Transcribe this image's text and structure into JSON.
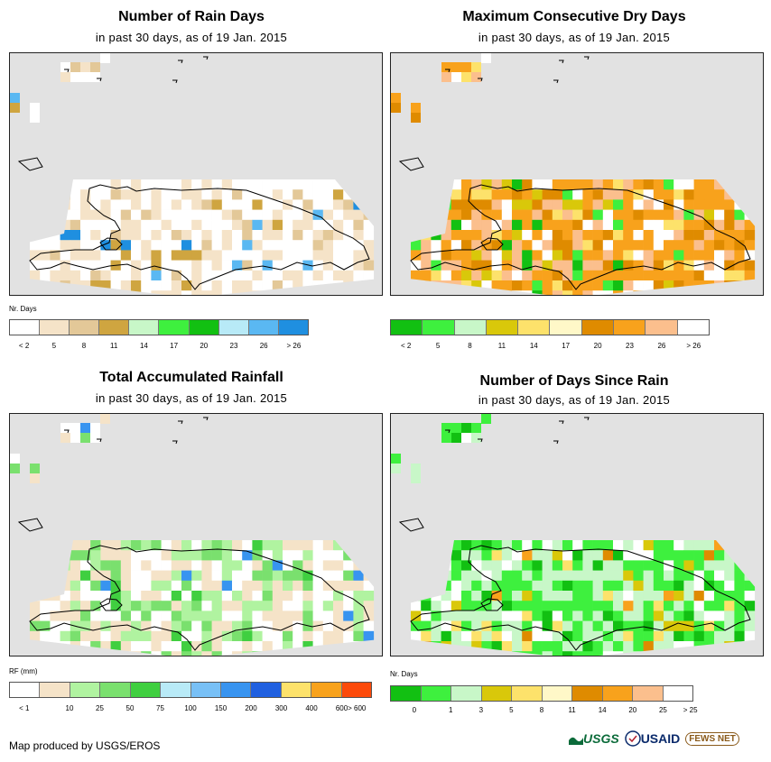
{
  "panels": [
    {
      "id": "rain-days",
      "title": "Number of Rain Days",
      "subtitle": "in past 30 days, as of 19 Jan. 2015",
      "legend_title": "Nr. Days",
      "legend_colors": [
        "#ffffff",
        "#f5e3c8",
        "#e3c898",
        "#cfa540",
        "#c8f7c8",
        "#3ef03e",
        "#12c012",
        "#b8eaf7",
        "#5ab8f2",
        "#1f8fe0"
      ],
      "legend_labels": [
        "< 2",
        "5",
        "8",
        "11",
        "14",
        "17",
        "20",
        "23",
        "26",
        "> 26"
      ],
      "label_align": "cell",
      "grid_colors": [
        "#ffffff",
        "#f5e3c8",
        "#e3c898",
        "#cfa540",
        "#5ab8f2",
        "#1f8fe0"
      ],
      "grid_weights": [
        55,
        28,
        6,
        4,
        1,
        1
      ]
    },
    {
      "id": "max-dry-days",
      "title": "Maximum Consecutive Dry Days",
      "subtitle": "in past 30 days, as of 19 Jan. 2015",
      "legend_title": "",
      "legend_colors": [
        "#12c012",
        "#3ef03e",
        "#c8f7c8",
        "#d9c80a",
        "#fde26b",
        "#fff8c8",
        "#df8b00",
        "#f8a21c",
        "#fbbf8d",
        "#ffffff"
      ],
      "legend_labels": [
        "< 2",
        "5",
        "8",
        "11",
        "14",
        "17",
        "20",
        "23",
        "26",
        "> 26"
      ],
      "label_align": "cell",
      "grid_colors": [
        "#f8a21c",
        "#df8b00",
        "#fbbf8d",
        "#ffffff",
        "#3ef03e",
        "#12c012",
        "#d9c80a",
        "#fde26b"
      ],
      "grid_weights": [
        34,
        14,
        16,
        16,
        5,
        4,
        5,
        6
      ]
    },
    {
      "id": "total-rainfall",
      "title": "Total Accumulated Rainfall",
      "subtitle": "in past 30 days, as of 19 Jan. 2015",
      "legend_title": "RF (mm)",
      "legend_colors": [
        "#ffffff",
        "#f5e3c8",
        "#b0f3a0",
        "#7ae06e",
        "#40cf40",
        "#b8eaf7",
        "#78c0f6",
        "#3894f0",
        "#2060e0",
        "#fde26b",
        "#f8a21c",
        "#fc4a0a"
      ],
      "legend_labels": [
        "< 1",
        "10",
        "25",
        "50",
        "75",
        "100",
        "150",
        "200",
        "300",
        "400",
        "600",
        "> 600"
      ],
      "label_align": "rf",
      "grid_colors": [
        "#ffffff",
        "#f5e3c8",
        "#b0f3a0",
        "#7ae06e",
        "#40cf40",
        "#3894f0"
      ],
      "grid_weights": [
        26,
        34,
        22,
        12,
        4,
        2
      ]
    },
    {
      "id": "days-since-rain",
      "title": "Number of Days Since Rain",
      "subtitle": "in past 30 days, as of 19 Jan. 2015",
      "legend_title": "Nr. Days",
      "legend_colors": [
        "#12c012",
        "#3ef03e",
        "#c8f7c8",
        "#d9c80a",
        "#fde26b",
        "#fff8c8",
        "#df8b00",
        "#f8a21c",
        "#fbbf8d",
        "#ffffff"
      ],
      "legend_labels": [
        "0",
        "1",
        "3",
        "5",
        "8",
        "11",
        "14",
        "20",
        "25",
        "> 25"
      ],
      "label_align": "edge",
      "grid_colors": [
        "#3ef03e",
        "#c8f7c8",
        "#12c012",
        "#ffffff",
        "#d9c80a",
        "#fde26b",
        "#df8b00",
        "#f8a21c"
      ],
      "grid_weights": [
        32,
        30,
        10,
        14,
        5,
        5,
        2,
        2
      ]
    }
  ],
  "credit": "Map produced by USGS/EROS",
  "logos": {
    "usgs": "USGS",
    "usaid": "USAID",
    "fews": "FEWS NET"
  },
  "colors": {
    "map_background": "#e2e2e2",
    "coastline": "#000000"
  }
}
